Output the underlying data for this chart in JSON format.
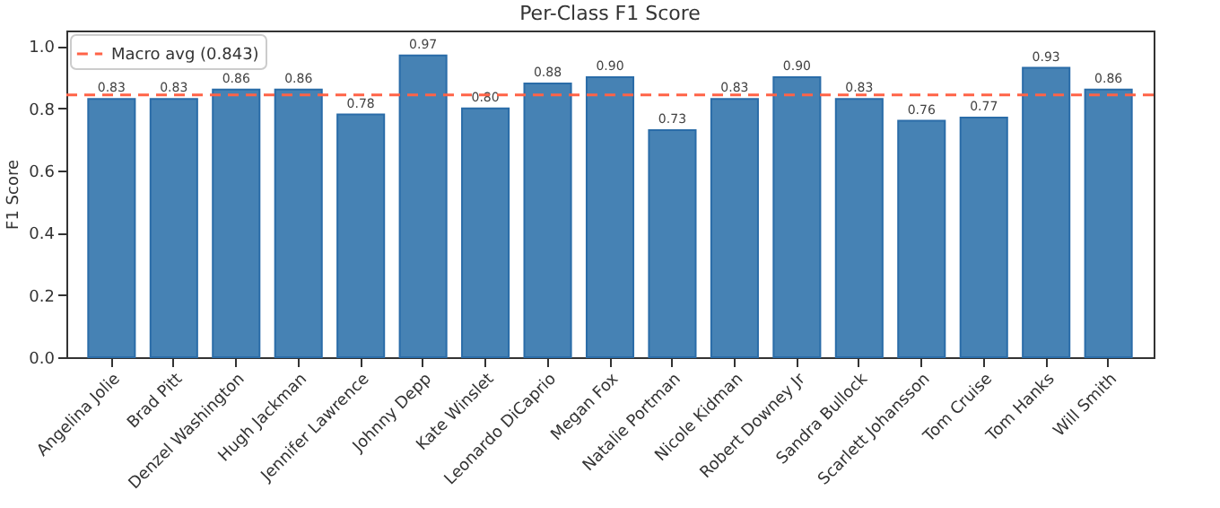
{
  "chart_data": {
    "type": "bar",
    "title": "Per-Class F1 Score",
    "ylabel": "F1 Score",
    "categories": [
      "Angelina Jolie",
      "Brad Pitt",
      "Denzel Washington",
      "Hugh Jackman",
      "Jennifer Lawrence",
      "Johnny Depp",
      "Kate Winslet",
      "Leonardo DiCaprio",
      "Megan Fox",
      "Natalie Portman",
      "Nicole Kidman",
      "Robert Downey Jr",
      "Sandra Bullock",
      "Scarlett Johansson",
      "Tom Cruise",
      "Tom Hanks",
      "Will Smith"
    ],
    "values": [
      0.83,
      0.83,
      0.86,
      0.86,
      0.78,
      0.97,
      0.8,
      0.88,
      0.9,
      0.73,
      0.83,
      0.9,
      0.83,
      0.76,
      0.77,
      0.93,
      0.86
    ],
    "value_labels": [
      "0.83",
      "0.83",
      "0.86",
      "0.86",
      "0.78",
      "0.97",
      "0.80",
      "0.88",
      "0.90",
      "0.73",
      "0.83",
      "0.90",
      "0.83",
      "0.76",
      "0.77",
      "0.93",
      "0.86"
    ],
    "color": "#4682b4",
    "ylim": [
      0,
      1.05
    ],
    "yticks": [
      {
        "value": 0,
        "label": "0.0"
      },
      {
        "value": 0.2,
        "label": "0.2"
      },
      {
        "value": 0.4,
        "label": "0.4"
      },
      {
        "value": 0.6,
        "label": "0.6"
      },
      {
        "value": 0.8,
        "label": "0.8"
      },
      {
        "value": 1,
        "label": "1.0"
      }
    ],
    "ref_lines": [
      {
        "axis": "y",
        "value": 0.843,
        "label": "Macro avg (0.843)",
        "color": "#ff6347",
        "line_style": "dashed"
      }
    ],
    "legend": "top left",
    "grid": false
  }
}
